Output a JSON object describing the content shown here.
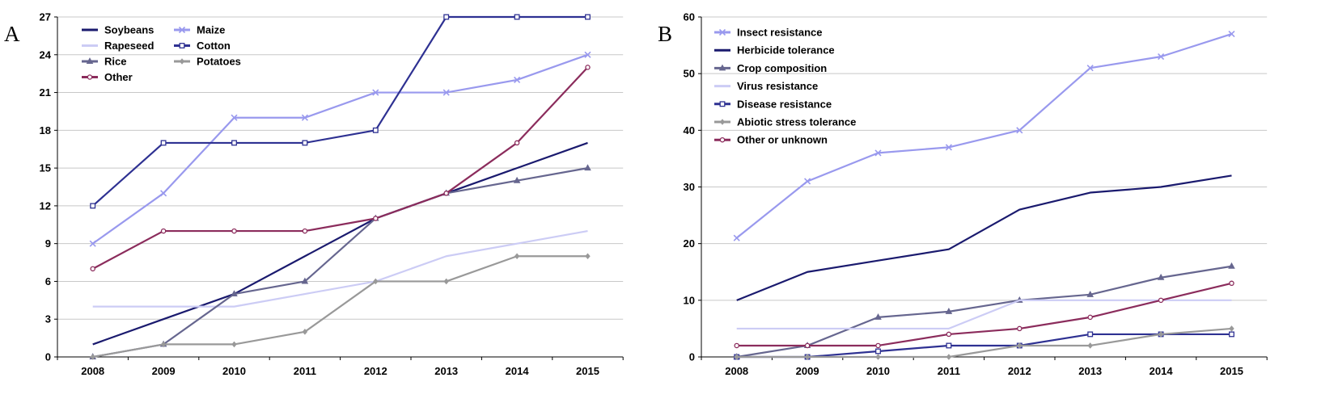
{
  "chart_data": [
    {
      "type": "line",
      "panel_label": "A",
      "x": [
        "2008",
        "2009",
        "2010",
        "2011",
        "2012",
        "2013",
        "2014",
        "2015"
      ],
      "ylim": [
        0,
        27
      ],
      "yticks": [
        0,
        3,
        6,
        9,
        12,
        15,
        18,
        21,
        24,
        27
      ],
      "grid": true,
      "legend_position": "top-left",
      "series": [
        {
          "name": "Soybeans",
          "color": "#1a1a6e",
          "marker": "none",
          "values": [
            1,
            3,
            5,
            8,
            11,
            13,
            15,
            17
          ]
        },
        {
          "name": "Maize",
          "color": "#9999ee",
          "marker": "x",
          "values": [
            9,
            13,
            19,
            19,
            21,
            21,
            22,
            24
          ]
        },
        {
          "name": "Rapeseed",
          "color": "#ccccf5",
          "marker": "none",
          "values": [
            4,
            4,
            4,
            5,
            6,
            8,
            9,
            10
          ]
        },
        {
          "name": "Cotton",
          "color": "#2e3192",
          "marker": "square",
          "values": [
            12,
            17,
            17,
            17,
            18,
            27,
            27,
            27
          ]
        },
        {
          "name": "Rice",
          "color": "#66668f",
          "marker": "triangle",
          "values": [
            0,
            1,
            5,
            6,
            11,
            13,
            14,
            15
          ]
        },
        {
          "name": "Potatoes",
          "color": "#999999",
          "marker": "diamond",
          "values": [
            0,
            1,
            1,
            2,
            6,
            6,
            8,
            8
          ]
        },
        {
          "name": "Other",
          "color": "#8b2c5c",
          "marker": "circle",
          "values": [
            7,
            10,
            10,
            10,
            11,
            13,
            17,
            23
          ]
        }
      ]
    },
    {
      "type": "line",
      "panel_label": "B",
      "x": [
        "2008",
        "2009",
        "2010",
        "2011",
        "2012",
        "2013",
        "2014",
        "2015"
      ],
      "ylim": [
        0,
        60
      ],
      "yticks": [
        0,
        10,
        20,
        30,
        40,
        50,
        60
      ],
      "grid": true,
      "legend_position": "top-left",
      "series": [
        {
          "name": "Insect resistance",
          "color": "#9999ee",
          "marker": "x",
          "values": [
            21,
            31,
            36,
            37,
            40,
            51,
            53,
            57
          ]
        },
        {
          "name": "Herbicide tolerance",
          "color": "#1a1a6e",
          "marker": "none",
          "values": [
            10,
            15,
            17,
            19,
            26,
            29,
            30,
            32
          ]
        },
        {
          "name": "Crop composition",
          "color": "#66668f",
          "marker": "triangle",
          "values": [
            0,
            2,
            7,
            8,
            10,
            11,
            14,
            16
          ]
        },
        {
          "name": "Virus resistance",
          "color": "#ccccf5",
          "marker": "none",
          "values": [
            5,
            5,
            5,
            5,
            10,
            10,
            10,
            10
          ]
        },
        {
          "name": "Disease resistance",
          "color": "#2e3192",
          "marker": "square",
          "values": [
            0,
            0,
            1,
            2,
            2,
            4,
            4,
            4
          ]
        },
        {
          "name": "Abiotic stress tolerance",
          "color": "#999999",
          "marker": "diamond",
          "values": [
            0,
            0,
            0,
            0,
            2,
            2,
            4,
            5
          ]
        },
        {
          "name": "Other or unknown",
          "color": "#8b2c5c",
          "marker": "circle",
          "values": [
            2,
            2,
            2,
            4,
            5,
            7,
            10,
            13
          ]
        }
      ]
    }
  ]
}
